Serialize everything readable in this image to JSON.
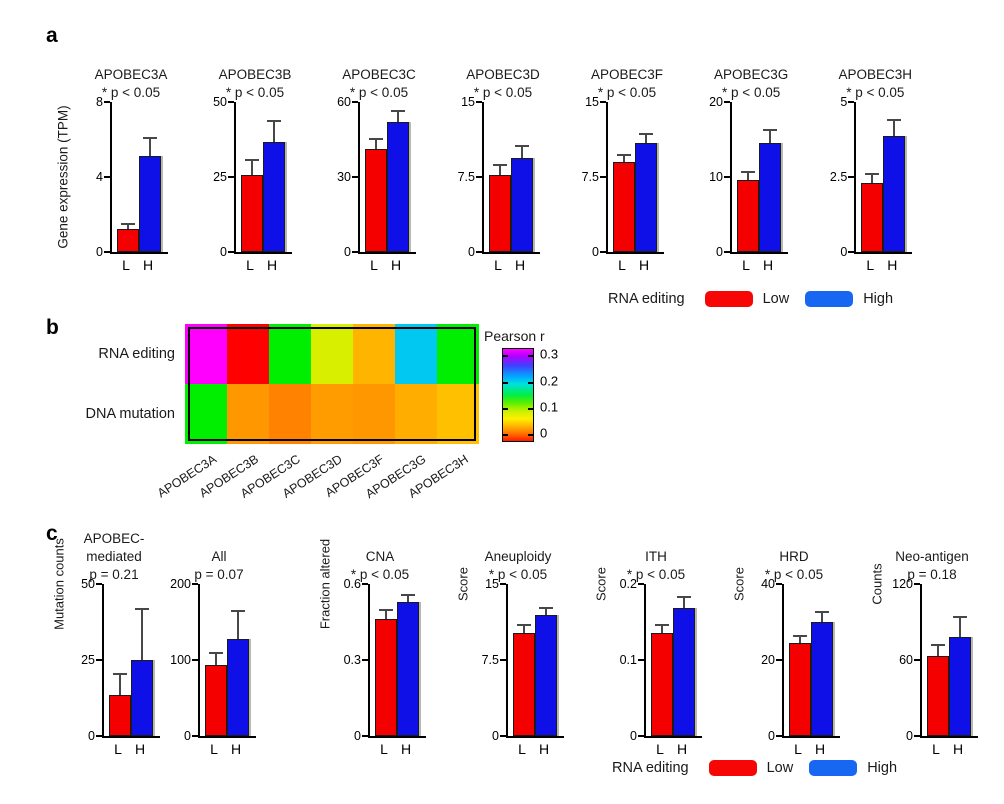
{
  "colors": {
    "low_bar": "#f40000",
    "high_bar": "#0f10e8",
    "legend_low": "#f60604",
    "legend_high": "#1767f2",
    "axis": "#000000",
    "error_bar": "#474747"
  },
  "panel_a": {
    "label": "a",
    "y_axis_label": "Gene expression (TPM)",
    "x_categories": [
      "L",
      "H"
    ],
    "legend": {
      "title": "RNA editing",
      "low": "Low",
      "high": "High"
    }
  },
  "panel_b": {
    "label": "b",
    "row_labels": [
      "RNA editing",
      "DNA mutation"
    ],
    "column_labels": [
      "APOBEC3A",
      "APOBEC3B",
      "APOBEC3C",
      "APOBEC3D",
      "APOBEC3F",
      "APOBEC3G",
      "APOBEC3H"
    ],
    "colorbar": {
      "title": "Pearson r",
      "tick_labels": [
        "0.3",
        "0.2",
        "0.1",
        "0"
      ]
    }
  },
  "panel_c": {
    "label": "c",
    "x_categories": [
      "L",
      "H"
    ],
    "legend": {
      "title": "RNA editing",
      "low": "Low",
      "high": "High"
    }
  },
  "chart_data": [
    {
      "id": "a1",
      "panel": "a",
      "type": "bar",
      "title_lines": [
        "APOBEC3A"
      ],
      "subtitle": "* p < 0.05",
      "categories": [
        "L",
        "H"
      ],
      "values": [
        1.2,
        5.1
      ],
      "errors": [
        0.2,
        0.9
      ],
      "ylim": [
        0,
        8
      ],
      "tick_labels": [
        "8",
        "4",
        "0"
      ]
    },
    {
      "id": "a2",
      "panel": "a",
      "type": "bar",
      "title_lines": [
        "APOBEC3B"
      ],
      "subtitle": "* p < 0.05",
      "categories": [
        "L",
        "H"
      ],
      "values": [
        25.5,
        36.5
      ],
      "errors": [
        4.5,
        6.5
      ],
      "ylim": [
        0,
        50
      ],
      "tick_labels": [
        "50",
        "25",
        "0"
      ]
    },
    {
      "id": "a3",
      "panel": "a",
      "type": "bar",
      "title_lines": [
        "APOBEC3C"
      ],
      "subtitle": "* p < 0.05",
      "categories": [
        "L",
        "H"
      ],
      "values": [
        41,
        52
      ],
      "errors": [
        3.5,
        4
      ],
      "ylim": [
        0,
        60
      ],
      "tick_labels": [
        "60",
        "30",
        "0"
      ]
    },
    {
      "id": "a4",
      "panel": "a",
      "type": "bar",
      "title_lines": [
        "APOBEC3D"
      ],
      "subtitle": "* p < 0.05",
      "categories": [
        "L",
        "H"
      ],
      "values": [
        7.7,
        9.4
      ],
      "errors": [
        0.9,
        1.1
      ],
      "ylim": [
        0,
        15
      ],
      "tick_labels": [
        "15",
        "7.5",
        "0"
      ]
    },
    {
      "id": "a5",
      "panel": "a",
      "type": "bar",
      "title_lines": [
        "APOBEC3F"
      ],
      "subtitle": "* p < 0.05",
      "categories": [
        "L",
        "H"
      ],
      "values": [
        9.0,
        10.9
      ],
      "errors": [
        0.6,
        0.8
      ],
      "ylim": [
        0,
        15
      ],
      "tick_labels": [
        "15",
        "7.5",
        "0"
      ]
    },
    {
      "id": "a6",
      "panel": "a",
      "type": "bar",
      "title_lines": [
        "APOBEC3G"
      ],
      "subtitle": "* p < 0.05",
      "categories": [
        "L",
        "H"
      ],
      "values": [
        9.6,
        14.5
      ],
      "errors": [
        0.9,
        1.6
      ],
      "ylim": [
        0,
        20
      ],
      "tick_labels": [
        "20",
        "10",
        "0"
      ]
    },
    {
      "id": "a7",
      "panel": "a",
      "type": "bar",
      "title_lines": [
        "APOBEC3H"
      ],
      "subtitle": "* p < 0.05",
      "categories": [
        "L",
        "H"
      ],
      "values": [
        2.3,
        3.85
      ],
      "errors": [
        0.25,
        0.5
      ],
      "ylim": [
        0,
        5
      ],
      "tick_labels": [
        "5",
        "2.5",
        "0"
      ]
    },
    {
      "id": "b-heatmap",
      "panel": "b",
      "type": "heatmap",
      "rows": [
        "RNA editing",
        "DNA mutation"
      ],
      "columns": [
        "APOBEC3A",
        "APOBEC3B",
        "APOBEC3C",
        "APOBEC3D",
        "APOBEC3F",
        "APOBEC3G",
        "APOBEC3H"
      ],
      "values_pearson_r": [
        [
          0.3,
          0.0,
          0.13,
          0.07,
          0.04,
          0.2,
          0.13
        ],
        [
          0.13,
          0.03,
          0.02,
          0.03,
          0.03,
          0.04,
          0.05
        ]
      ],
      "cell_colors": [
        [
          "#ff00ff",
          "#ff0000",
          "#00ee00",
          "#d8f000",
          "#ffb400",
          "#00c8f0",
          "#00ee00"
        ],
        [
          "#00ee00",
          "#ff9800",
          "#ff8300",
          "#ff9d00",
          "#ff9800",
          "#ffae00",
          "#ffc000"
        ]
      ],
      "colorbar": {
        "title": "Pearson r",
        "ticks": [
          0.3,
          0.2,
          0.1,
          0
        ]
      }
    },
    {
      "id": "c1",
      "panel": "c",
      "type": "bar",
      "title_lines": [
        "APOBEC-",
        "mediated"
      ],
      "subtitle": "p = 0.21",
      "ylabel": "Mutation counts",
      "categories": [
        "L",
        "H"
      ],
      "values": [
        13.5,
        25
      ],
      "errors": [
        6.5,
        16.5
      ],
      "ylim": [
        0,
        50
      ],
      "tick_labels": [
        "50",
        "25",
        "0"
      ]
    },
    {
      "id": "c2",
      "panel": "c",
      "type": "bar",
      "title_lines": [
        "All"
      ],
      "subtitle": "p = 0.07",
      "categories": [
        "L",
        "H"
      ],
      "values": [
        93,
        128
      ],
      "errors": [
        14,
        36
      ],
      "ylim": [
        0,
        200
      ],
      "tick_labels": [
        "200",
        "100",
        "0"
      ]
    },
    {
      "id": "c3",
      "panel": "c",
      "type": "bar",
      "title_lines": [
        "CNA"
      ],
      "subtitle": "* p < 0.05",
      "ylabel": "Fraction altered",
      "categories": [
        "L",
        "H"
      ],
      "values": [
        0.46,
        0.53
      ],
      "errors": [
        0.03,
        0.025
      ],
      "ylim": [
        0,
        0.6
      ],
      "tick_labels": [
        "0.6",
        "0.3",
        "0"
      ]
    },
    {
      "id": "c4",
      "panel": "c",
      "type": "bar",
      "title_lines": [
        "Aneuploidy"
      ],
      "subtitle": "* p < 0.05",
      "ylabel": "Score",
      "categories": [
        "L",
        "H"
      ],
      "values": [
        10.2,
        11.9
      ],
      "errors": [
        0.7,
        0.55
      ],
      "ylim": [
        0,
        15
      ],
      "tick_labels": [
        "15",
        "7.5",
        "0"
      ]
    },
    {
      "id": "c5",
      "panel": "c",
      "type": "bar",
      "title_lines": [
        "ITH"
      ],
      "subtitle": "* p < 0.05",
      "ylabel": "Score",
      "categories": [
        "L",
        "H"
      ],
      "values": [
        0.135,
        0.168
      ],
      "errors": [
        0.009,
        0.013
      ],
      "ylim": [
        0,
        0.2
      ],
      "tick_labels": [
        "0.2",
        "0.1",
        "0"
      ]
    },
    {
      "id": "c6",
      "panel": "c",
      "type": "bar",
      "title_lines": [
        "HRD"
      ],
      "subtitle": "* p < 0.05",
      "ylabel": "Score",
      "categories": [
        "L",
        "H"
      ],
      "values": [
        24.5,
        30
      ],
      "errors": [
        1.5,
        2.3
      ],
      "ylim": [
        0,
        40
      ],
      "tick_labels": [
        "40",
        "20",
        "0"
      ]
    },
    {
      "id": "c7",
      "panel": "c",
      "type": "bar",
      "title_lines": [
        "Neo-antigen"
      ],
      "subtitle": "p = 0.18",
      "ylabel": "Counts",
      "categories": [
        "L",
        "H"
      ],
      "values": [
        63,
        78
      ],
      "errors": [
        8,
        15
      ],
      "ylim": [
        0,
        120
      ],
      "tick_labels": [
        "120",
        "60",
        "0"
      ]
    }
  ]
}
